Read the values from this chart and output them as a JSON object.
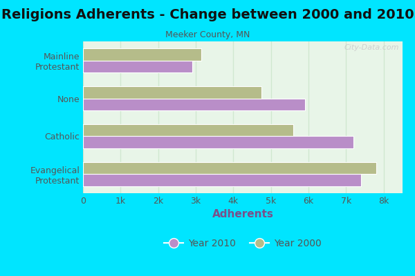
{
  "title": "Religions Adherents - Change between 2000 and 2010",
  "subtitle": "Meeker County, MN",
  "xlabel": "Adherents",
  "categories": [
    "Evangelical\nProtestant",
    "Catholic",
    "None",
    "Mainline\nProtestant"
  ],
  "year2010": [
    2900,
    5900,
    7200,
    7400
  ],
  "year2000": [
    3150,
    4750,
    5600,
    7800
  ],
  "color_2010": "#b98ec8",
  "color_2000": "#b5bc8a",
  "background_outer": "#00e5ff",
  "background_inner_top": "#e8f5e8",
  "background_inner_bottom": "#f0fff0",
  "xlim": [
    0,
    8500
  ],
  "xticks": [
    0,
    1000,
    2000,
    3000,
    4000,
    5000,
    6000,
    7000,
    8000
  ],
  "xticklabels": [
    "0",
    "1k",
    "2k",
    "3k",
    "4k",
    "5k",
    "6k",
    "7k",
    "8k"
  ],
  "watermark": "City-Data.com",
  "title_fontsize": 14,
  "subtitle_fontsize": 9,
  "xlabel_fontsize": 11,
  "tick_fontsize": 9,
  "legend_fontsize": 10,
  "bar_height": 0.32,
  "ytick_color": "#555555",
  "xtick_color": "#555555",
  "xlabel_color": "#7a4f8a",
  "grid_color": "#d0e8d0",
  "title_color": "#111111"
}
